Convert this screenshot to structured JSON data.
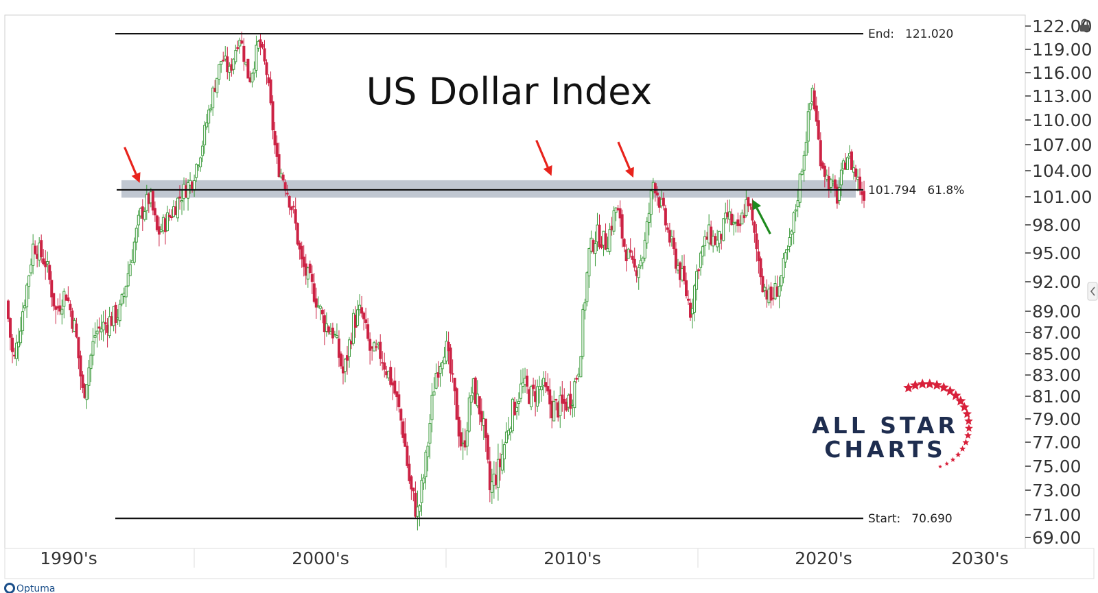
{
  "chart_data": {
    "type": "candlestick",
    "title": "US Dollar Index",
    "y_ticks": [
      "122.00",
      "119.00",
      "116.00",
      "113.00",
      "110.00",
      "107.00",
      "104.00",
      "101.00",
      "98.00",
      "95.00",
      "92.00",
      "89.00",
      "87.00",
      "85.00",
      "83.00",
      "81.00",
      "79.00",
      "77.00",
      "75.00",
      "73.00",
      "71.00",
      "69.00"
    ],
    "x_ticks": [
      "1990's",
      "2000's",
      "2010's",
      "2020's",
      "2030's"
    ],
    "x_range": [
      1990,
      2031
    ],
    "levels": {
      "end": {
        "label": "End:",
        "value": "121.020"
      },
      "fib": {
        "value": "101.794",
        "pct": "61.8%"
      },
      "start": {
        "label": "Start:",
        "value": "70.690"
      }
    },
    "zone": {
      "low": 100.9,
      "high": 102.9
    },
    "colors": {
      "up": "#3a9a3a",
      "down": "#cc2244",
      "zone": "#b9c1cc",
      "arrow_red": "#e8231c",
      "arrow_green": "#1e8a1e",
      "brand": "#1e2d4f",
      "star": "#d8203a"
    },
    "arrows": [
      {
        "color": "red",
        "year": 1995.3,
        "value": 102.6
      },
      {
        "color": "red",
        "year": 2011.9,
        "value": 103.4
      },
      {
        "color": "red",
        "year": 2015.2,
        "value": 103.2
      },
      {
        "color": "green",
        "year": 2020.0,
        "value": 100.7
      }
    ],
    "path": [
      [
        1990.0,
        90
      ],
      [
        1990.3,
        84
      ],
      [
        1990.8,
        91
      ],
      [
        1991.1,
        96
      ],
      [
        1991.6,
        94
      ],
      [
        1992.0,
        89
      ],
      [
        1992.4,
        91
      ],
      [
        1992.8,
        87
      ],
      [
        1993.1,
        81
      ],
      [
        1993.6,
        87
      ],
      [
        1994.1,
        88
      ],
      [
        1994.6,
        89
      ],
      [
        1995.0,
        94
      ],
      [
        1995.4,
        99
      ],
      [
        1995.8,
        101
      ],
      [
        1996.1,
        97
      ],
      [
        1996.6,
        99
      ],
      [
        1997.0,
        101
      ],
      [
        1997.5,
        103
      ],
      [
        1997.9,
        107
      ],
      [
        1998.3,
        113
      ],
      [
        1998.7,
        118
      ],
      [
        1999.0,
        116
      ],
      [
        1999.4,
        121
      ],
      [
        1999.8,
        115
      ],
      [
        2000.2,
        120
      ],
      [
        2000.5,
        116
      ],
      [
        2000.9,
        105
      ],
      [
        2001.2,
        103
      ],
      [
        2001.6,
        99
      ],
      [
        2001.9,
        94
      ],
      [
        2002.4,
        91
      ],
      [
        2002.8,
        88
      ],
      [
        2003.2,
        87
      ],
      [
        2003.6,
        83
      ],
      [
        2004.0,
        88
      ],
      [
        2004.3,
        89
      ],
      [
        2004.7,
        85
      ],
      [
        2005.1,
        85
      ],
      [
        2005.6,
        82
      ],
      [
        2006.0,
        78
      ],
      [
        2006.3,
        73
      ],
      [
        2006.6,
        71
      ],
      [
        2006.9,
        75
      ],
      [
        2007.3,
        83
      ],
      [
        2007.7,
        86
      ],
      [
        2008.0,
        82
      ],
      [
        2008.4,
        76
      ],
      [
        2008.8,
        82
      ],
      [
        2009.2,
        79
      ],
      [
        2009.5,
        73
      ],
      [
        2009.9,
        75
      ],
      [
        2010.3,
        79
      ],
      [
        2010.8,
        82
      ],
      [
        2011.2,
        81
      ],
      [
        2011.6,
        82
      ],
      [
        2012.0,
        80
      ],
      [
        2012.4,
        80
      ],
      [
        2012.8,
        81
      ],
      [
        2013.1,
        84
      ],
      [
        2013.5,
        95
      ],
      [
        2013.8,
        97
      ],
      [
        2014.2,
        96
      ],
      [
        2014.6,
        100
      ],
      [
        2014.9,
        96
      ],
      [
        2015.3,
        93
      ],
      [
        2015.7,
        95
      ],
      [
        2016.1,
        103
      ],
      [
        2016.5,
        99
      ],
      [
        2016.9,
        95
      ],
      [
        2017.3,
        92
      ],
      [
        2017.6,
        89
      ],
      [
        2017.9,
        94
      ],
      [
        2018.3,
        97
      ],
      [
        2018.7,
        96
      ],
      [
        2019.1,
        99
      ],
      [
        2019.5,
        97
      ],
      [
        2019.9,
        101
      ],
      [
        2020.2,
        96
      ],
      [
        2020.5,
        92
      ],
      [
        2020.8,
        90
      ],
      [
        2021.2,
        92
      ],
      [
        2021.6,
        96
      ],
      [
        2021.9,
        101
      ],
      [
        2022.2,
        107
      ],
      [
        2022.5,
        114
      ],
      [
        2022.8,
        106
      ],
      [
        2023.1,
        103
      ],
      [
        2023.5,
        101
      ],
      [
        2023.9,
        106
      ],
      [
        2024.2,
        104
      ],
      [
        2024.5,
        101.5
      ]
    ]
  },
  "logo": {
    "line1": "ALL STAR",
    "line2": "CHARTS"
  },
  "footer": {
    "brand": "Optuma"
  }
}
